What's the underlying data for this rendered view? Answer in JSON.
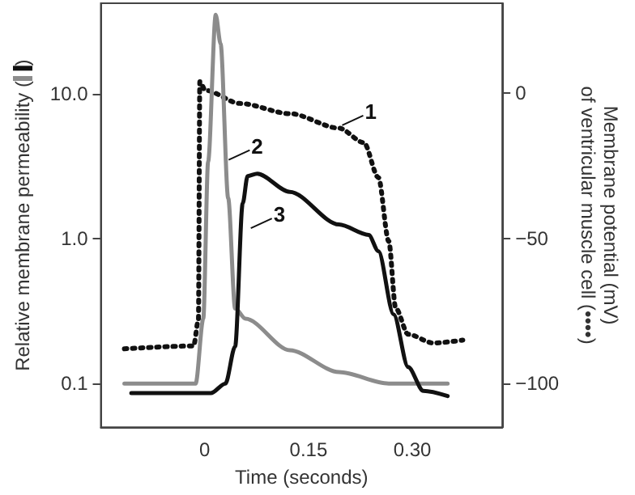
{
  "chart_data": {
    "type": "line",
    "xlabel": "Time (seconds)",
    "ylabel": "Relative membrane permeability ()",
    "y2label": "Membrane potential (mV)\nof ventricular muscle cell (••••)",
    "xlim": [
      -0.15,
      0.43
    ],
    "xticks": [
      0,
      0.15,
      {
        "value": 0.3,
        "label": "0.30"
      }
    ],
    "ylim": [
      0.05,
      42
    ],
    "yticks": [
      {
        "value": 0.1,
        "label": "0.1"
      },
      {
        "value": 1,
        "label": "1.0"
      },
      {
        "value": 10,
        "label": "10.0"
      }
    ],
    "log": "y",
    "y2lim": [
      -115,
      31
    ],
    "y2ticks": [
      {
        "value": -100,
        "label": "−100"
      },
      {
        "value": -50,
        "label": "−50"
      },
      0
    ],
    "grid": false,
    "marker": "none",
    "series": [
      {
        "color": "#111111",
        "axis": "y2",
        "line_style": "dotted",
        "x": [
          -0.116,
          -0.016,
          -0.009,
          -0.007,
          0.001,
          0.051,
          0.123,
          0.194,
          0.23,
          0.251,
          0.266,
          0.276,
          0.294,
          0.33,
          0.373
        ],
        "values": [
          -88,
          -87,
          -78,
          4,
          1,
          -3.5,
          -7,
          -12,
          -17,
          -29,
          -51,
          -74,
          -83,
          -86,
          -85
        ]
      },
      {
        "color": "#8c8c8c",
        "line_style": "solid",
        "x": [
          -0.116,
          -0.013,
          -0.002,
          0.005,
          0.016,
          0.023,
          0.034,
          0.044,
          0.059,
          0.123,
          0.194,
          0.266,
          0.351
        ],
        "values": [
          0.1,
          0.1,
          0.28,
          3.4,
          35,
          22,
          1.9,
          0.33,
          0.28,
          0.17,
          0.12,
          0.1,
          0.1
        ]
      },
      {
        "color": "#111111",
        "line_style": "solid",
        "x": [
          -0.106,
          0.009,
          0.03,
          0.044,
          0.055,
          0.062,
          0.076,
          0.123,
          0.194,
          0.237,
          0.251,
          0.273,
          0.294,
          0.316,
          0.351
        ],
        "values": [
          0.086,
          0.086,
          0.1,
          0.18,
          1.75,
          2.7,
          2.8,
          2.1,
          1.25,
          1.06,
          0.82,
          0.3,
          0.13,
          0.089,
          0.082
        ]
      }
    ],
    "annotations": [
      {
        "text": "1",
        "x": 0.194,
        "y": 5.9
      },
      {
        "text": "2",
        "x": 0.03,
        "y": 3.4
      },
      {
        "text": "3",
        "x": 0.062,
        "y": 1.15
      }
    ]
  }
}
